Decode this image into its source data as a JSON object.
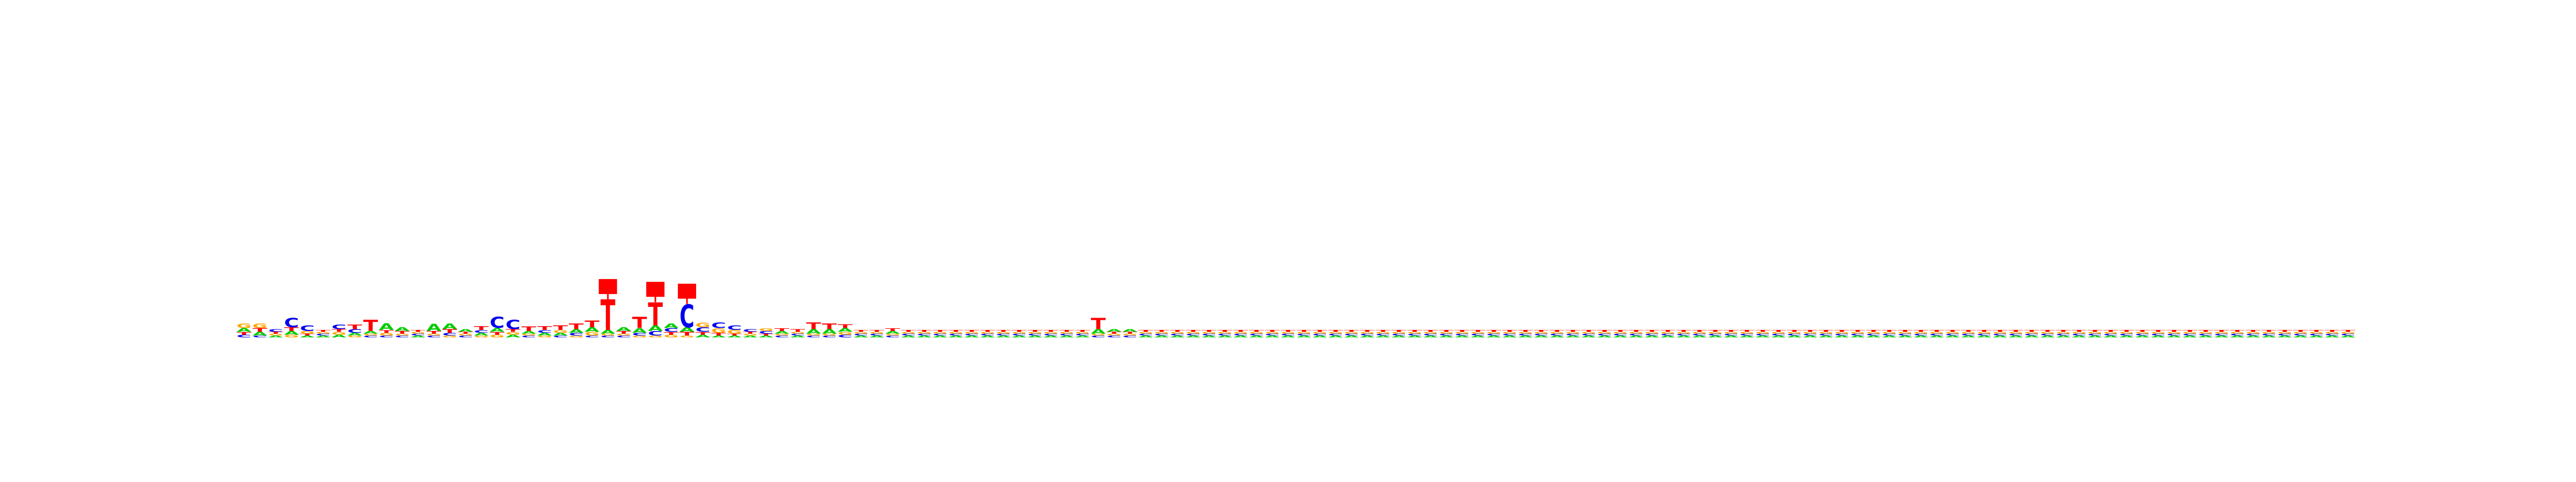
{
  "chart_data": {
    "type": "sequence-logo",
    "alphabet": [
      "A",
      "C",
      "G",
      "T"
    ],
    "colors": {
      "A": "#00cc00",
      "C": "#0000ee",
      "G": "#ffa500",
      "T": "#ff0000"
    },
    "ylim": [
      0,
      2
    ],
    "positions": [
      {
        "A": 0.04,
        "C": 0.03,
        "G": 0.05,
        "T": 0.03
      },
      {
        "A": 0.04,
        "C": 0.02,
        "G": 0.05,
        "T": 0.04
      },
      {
        "A": 0.02,
        "C": 0.03,
        "G": 0.02,
        "T": 0.02
      },
      {
        "A": 0.04,
        "C": 0.1,
        "G": 0.03,
        "T": 0.04
      },
      {
        "A": 0.02,
        "C": 0.06,
        "G": 0.03,
        "T": 0.02
      },
      {
        "A": 0.02,
        "C": 0.02,
        "G": 0.02,
        "T": 0.02
      },
      {
        "A": 0.03,
        "C": 0.05,
        "G": 0.03,
        "T": 0.03
      },
      {
        "A": 0.03,
        "C": 0.04,
        "G": 0.02,
        "T": 0.05
      },
      {
        "A": 0.03,
        "C": 0.02,
        "G": 0.02,
        "T": 0.12
      },
      {
        "A": 0.07,
        "C": 0.02,
        "G": 0.03,
        "T": 0.03
      },
      {
        "A": 0.04,
        "C": 0.02,
        "G": 0.02,
        "T": 0.03
      },
      {
        "A": 0.02,
        "C": 0.02,
        "G": 0.02,
        "T": 0.02
      },
      {
        "A": 0.08,
        "C": 0.02,
        "G": 0.02,
        "T": 0.03
      },
      {
        "A": 0.06,
        "C": 0.03,
        "G": 0.02,
        "T": 0.04
      },
      {
        "A": 0.03,
        "C": 0.02,
        "G": 0.02,
        "T": 0.02
      },
      {
        "A": 0.03,
        "C": 0.03,
        "G": 0.02,
        "T": 0.04
      },
      {
        "A": 0.04,
        "C": 0.12,
        "G": 0.03,
        "T": 0.03
      },
      {
        "A": 0.03,
        "C": 0.1,
        "G": 0.03,
        "T": 0.03
      },
      {
        "A": 0.03,
        "C": 0.02,
        "G": 0.02,
        "T": 0.05
      },
      {
        "A": 0.03,
        "C": 0.03,
        "G": 0.02,
        "T": 0.04
      },
      {
        "A": 0.03,
        "C": 0.02,
        "G": 0.03,
        "T": 0.05
      },
      {
        "A": 0.04,
        "C": 0.03,
        "G": 0.02,
        "T": 0.06
      },
      {
        "A": 0.05,
        "C": 0.02,
        "G": 0.04,
        "T": 0.07
      },
      {
        "A": 0.04,
        "C": 0.02,
        "G": 0.02,
        "T": 0.33
      },
      {
        "A": 0.04,
        "C": 0.02,
        "G": 0.02,
        "T": 0.03
      },
      {
        "A": 0.05,
        "C": 0.03,
        "G": 0.02,
        "T": 0.12
      },
      {
        "A": 0.06,
        "C": 0.05,
        "G": 0.02,
        "T": 0.25
      },
      {
        "A": 0.05,
        "C": 0.04,
        "G": 0.03,
        "T": 0.03
      },
      {
        "A": 0.05,
        "C": 0.25,
        "G": 0.02,
        "T": 0.04
      },
      {
        "A": 0.03,
        "C": 0.05,
        "G": 0.05,
        "T": 0.03
      },
      {
        "A": 0.02,
        "C": 0.06,
        "G": 0.05,
        "T": 0.03
      },
      {
        "A": 0.02,
        "C": 0.05,
        "G": 0.04,
        "T": 0.02
      },
      {
        "A": 0.02,
        "C": 0.03,
        "G": 0.02,
        "T": 0.02
      },
      {
        "A": 0.02,
        "C": 0.03,
        "G": 0.03,
        "T": 0.02
      },
      {
        "A": 0.03,
        "C": 0.02,
        "G": 0.02,
        "T": 0.03
      },
      {
        "A": 0.02,
        "C": 0.02,
        "G": 0.02,
        "T": 0.03
      },
      {
        "A": 0.05,
        "C": 0.02,
        "G": 0.02,
        "T": 0.07
      },
      {
        "A": 0.05,
        "C": 0.02,
        "G": 0.02,
        "T": 0.06
      },
      {
        "A": 0.04,
        "C": 0.03,
        "G": 0.03,
        "T": 0.04
      },
      {
        "A": 0.02,
        "C": 0.02,
        "G": 0.02,
        "T": 0.02
      },
      {
        "A": 0.02,
        "C": 0.02,
        "G": 0.02,
        "T": 0.02
      },
      {
        "A": 0.03,
        "C": 0.02,
        "G": 0.02,
        "T": 0.03
      },
      {
        "A": 0.02,
        "C": 0.02,
        "G": 0.02,
        "T": 0.02
      },
      {
        "A": 0.02,
        "C": 0.02,
        "G": 0.02,
        "T": 0.02
      },
      {
        "A": 0.02,
        "C": 0.02,
        "G": 0.02,
        "T": 0.02
      },
      {
        "A": 0.02,
        "C": 0.02,
        "G": 0.02,
        "T": 0.02
      },
      {
        "A": 0.02,
        "C": 0.02,
        "G": 0.02,
        "T": 0.02
      },
      {
        "A": 0.02,
        "C": 0.02,
        "G": 0.02,
        "T": 0.02
      },
      {
        "A": 0.02,
        "C": 0.02,
        "G": 0.02,
        "T": 0.02
      },
      {
        "A": 0.02,
        "C": 0.02,
        "G": 0.02,
        "T": 0.02
      },
      {
        "A": 0.02,
        "C": 0.02,
        "G": 0.02,
        "T": 0.02
      },
      {
        "A": 0.02,
        "C": 0.02,
        "G": 0.02,
        "T": 0.02
      },
      {
        "A": 0.02,
        "C": 0.02,
        "G": 0.02,
        "T": 0.02
      },
      {
        "A": 0.02,
        "C": 0.02,
        "G": 0.02,
        "T": 0.02
      },
      {
        "A": 0.05,
        "C": 0.02,
        "G": 0.02,
        "T": 0.12
      },
      {
        "A": 0.03,
        "C": 0.02,
        "G": 0.02,
        "T": 0.02
      },
      {
        "A": 0.03,
        "C": 0.02,
        "G": 0.02,
        "T": 0.02
      },
      {
        "A": 0.02,
        "C": 0.02,
        "G": 0.02,
        "T": 0.02
      },
      {
        "A": 0.02,
        "C": 0.02,
        "G": 0.02,
        "T": 0.02
      },
      {
        "A": 0.02,
        "C": 0.02,
        "G": 0.02,
        "T": 0.02
      },
      {
        "A": 0.02,
        "C": 0.02,
        "G": 0.02,
        "T": 0.02
      },
      {
        "A": 0.02,
        "C": 0.02,
        "G": 0.02,
        "T": 0.02
      },
      {
        "A": 0.02,
        "C": 0.02,
        "G": 0.02,
        "T": 0.02
      },
      {
        "A": 0.02,
        "C": 0.02,
        "G": 0.02,
        "T": 0.02
      },
      {
        "A": 0.02,
        "C": 0.02,
        "G": 0.02,
        "T": 0.02
      },
      {
        "A": 0.02,
        "C": 0.02,
        "G": 0.02,
        "T": 0.02
      },
      {
        "A": 0.02,
        "C": 0.02,
        "G": 0.02,
        "T": 0.02
      },
      {
        "A": 0.02,
        "C": 0.02,
        "G": 0.02,
        "T": 0.02
      },
      {
        "A": 0.02,
        "C": 0.02,
        "G": 0.02,
        "T": 0.02
      },
      {
        "A": 0.02,
        "C": 0.02,
        "G": 0.02,
        "T": 0.02
      },
      {
        "A": 0.02,
        "C": 0.02,
        "G": 0.02,
        "T": 0.02
      },
      {
        "A": 0.02,
        "C": 0.02,
        "G": 0.02,
        "T": 0.02
      },
      {
        "A": 0.02,
        "C": 0.02,
        "G": 0.02,
        "T": 0.02
      },
      {
        "A": 0.02,
        "C": 0.02,
        "G": 0.02,
        "T": 0.02
      },
      {
        "A": 0.02,
        "C": 0.02,
        "G": 0.02,
        "T": 0.02
      },
      {
        "A": 0.02,
        "C": 0.02,
        "G": 0.02,
        "T": 0.02
      },
      {
        "A": 0.02,
        "C": 0.02,
        "G": 0.02,
        "T": 0.02
      },
      {
        "A": 0.02,
        "C": 0.02,
        "G": 0.02,
        "T": 0.02
      },
      {
        "A": 0.02,
        "C": 0.02,
        "G": 0.02,
        "T": 0.02
      },
      {
        "A": 0.02,
        "C": 0.02,
        "G": 0.02,
        "T": 0.02
      },
      {
        "A": 0.02,
        "C": 0.02,
        "G": 0.02,
        "T": 0.02
      },
      {
        "A": 0.02,
        "C": 0.02,
        "G": 0.02,
        "T": 0.02
      },
      {
        "A": 0.02,
        "C": 0.02,
        "G": 0.02,
        "T": 0.02
      },
      {
        "A": 0.02,
        "C": 0.02,
        "G": 0.02,
        "T": 0.02
      },
      {
        "A": 0.02,
        "C": 0.02,
        "G": 0.02,
        "T": 0.02
      },
      {
        "A": 0.02,
        "C": 0.02,
        "G": 0.02,
        "T": 0.02
      },
      {
        "A": 0.02,
        "C": 0.02,
        "G": 0.02,
        "T": 0.02
      },
      {
        "A": 0.02,
        "C": 0.02,
        "G": 0.02,
        "T": 0.02
      },
      {
        "A": 0.02,
        "C": 0.02,
        "G": 0.02,
        "T": 0.02
      },
      {
        "A": 0.02,
        "C": 0.02,
        "G": 0.02,
        "T": 0.02
      },
      {
        "A": 0.02,
        "C": 0.02,
        "G": 0.02,
        "T": 0.02
      },
      {
        "A": 0.02,
        "C": 0.02,
        "G": 0.02,
        "T": 0.02
      },
      {
        "A": 0.02,
        "C": 0.02,
        "G": 0.02,
        "T": 0.02
      },
      {
        "A": 0.02,
        "C": 0.02,
        "G": 0.02,
        "T": 0.02
      },
      {
        "A": 0.02,
        "C": 0.02,
        "G": 0.02,
        "T": 0.02
      },
      {
        "A": 0.02,
        "C": 0.02,
        "G": 0.02,
        "T": 0.02
      },
      {
        "A": 0.02,
        "C": 0.02,
        "G": 0.02,
        "T": 0.02
      },
      {
        "A": 0.02,
        "C": 0.02,
        "G": 0.02,
        "T": 0.02
      },
      {
        "A": 0.02,
        "C": 0.02,
        "G": 0.02,
        "T": 0.02
      },
      {
        "A": 0.02,
        "C": 0.02,
        "G": 0.02,
        "T": 0.02
      },
      {
        "A": 0.02,
        "C": 0.02,
        "G": 0.02,
        "T": 0.02
      },
      {
        "A": 0.02,
        "C": 0.02,
        "G": 0.02,
        "T": 0.02
      },
      {
        "A": 0.02,
        "C": 0.02,
        "G": 0.02,
        "T": 0.02
      },
      {
        "A": 0.02,
        "C": 0.02,
        "G": 0.02,
        "T": 0.02
      },
      {
        "A": 0.02,
        "C": 0.02,
        "G": 0.02,
        "T": 0.02
      },
      {
        "A": 0.02,
        "C": 0.02,
        "G": 0.02,
        "T": 0.02
      },
      {
        "A": 0.02,
        "C": 0.02,
        "G": 0.02,
        "T": 0.02
      },
      {
        "A": 0.02,
        "C": 0.02,
        "G": 0.02,
        "T": 0.02
      },
      {
        "A": 0.02,
        "C": 0.02,
        "G": 0.02,
        "T": 0.02
      },
      {
        "A": 0.02,
        "C": 0.02,
        "G": 0.02,
        "T": 0.02
      },
      {
        "A": 0.02,
        "C": 0.02,
        "G": 0.02,
        "T": 0.02
      },
      {
        "A": 0.02,
        "C": 0.02,
        "G": 0.02,
        "T": 0.02
      },
      {
        "A": 0.02,
        "C": 0.02,
        "G": 0.02,
        "T": 0.02
      },
      {
        "A": 0.02,
        "C": 0.02,
        "G": 0.02,
        "T": 0.02
      },
      {
        "A": 0.02,
        "C": 0.02,
        "G": 0.02,
        "T": 0.02
      },
      {
        "A": 0.02,
        "C": 0.02,
        "G": 0.02,
        "T": 0.02
      },
      {
        "A": 0.02,
        "C": 0.02,
        "G": 0.02,
        "T": 0.02
      },
      {
        "A": 0.02,
        "C": 0.02,
        "G": 0.02,
        "T": 0.02
      },
      {
        "A": 0.02,
        "C": 0.02,
        "G": 0.02,
        "T": 0.02
      },
      {
        "A": 0.02,
        "C": 0.02,
        "G": 0.02,
        "T": 0.02
      },
      {
        "A": 0.02,
        "C": 0.02,
        "G": 0.02,
        "T": 0.02
      },
      {
        "A": 0.02,
        "C": 0.02,
        "G": 0.02,
        "T": 0.02
      },
      {
        "A": 0.02,
        "C": 0.02,
        "G": 0.02,
        "T": 0.02
      },
      {
        "A": 0.02,
        "C": 0.02,
        "G": 0.02,
        "T": 0.02
      },
      {
        "A": 0.02,
        "C": 0.02,
        "G": 0.02,
        "T": 0.02
      },
      {
        "A": 0.02,
        "C": 0.02,
        "G": 0.02,
        "T": 0.02
      },
      {
        "A": 0.02,
        "C": 0.02,
        "G": 0.02,
        "T": 0.02
      },
      {
        "A": 0.02,
        "C": 0.02,
        "G": 0.02,
        "T": 0.02
      },
      {
        "A": 0.02,
        "C": 0.02,
        "G": 0.02,
        "T": 0.02
      },
      {
        "A": 0.02,
        "C": 0.02,
        "G": 0.02,
        "T": 0.02
      },
      {
        "A": 0.02,
        "C": 0.02,
        "G": 0.02,
        "T": 0.02
      },
      {
        "A": 0.02,
        "C": 0.02,
        "G": 0.02,
        "T": 0.02
      },
      {
        "A": 0.02,
        "C": 0.02,
        "G": 0.02,
        "T": 0.02
      },
      {
        "A": 0.02,
        "C": 0.02,
        "G": 0.02,
        "T": 0.02
      }
    ]
  }
}
